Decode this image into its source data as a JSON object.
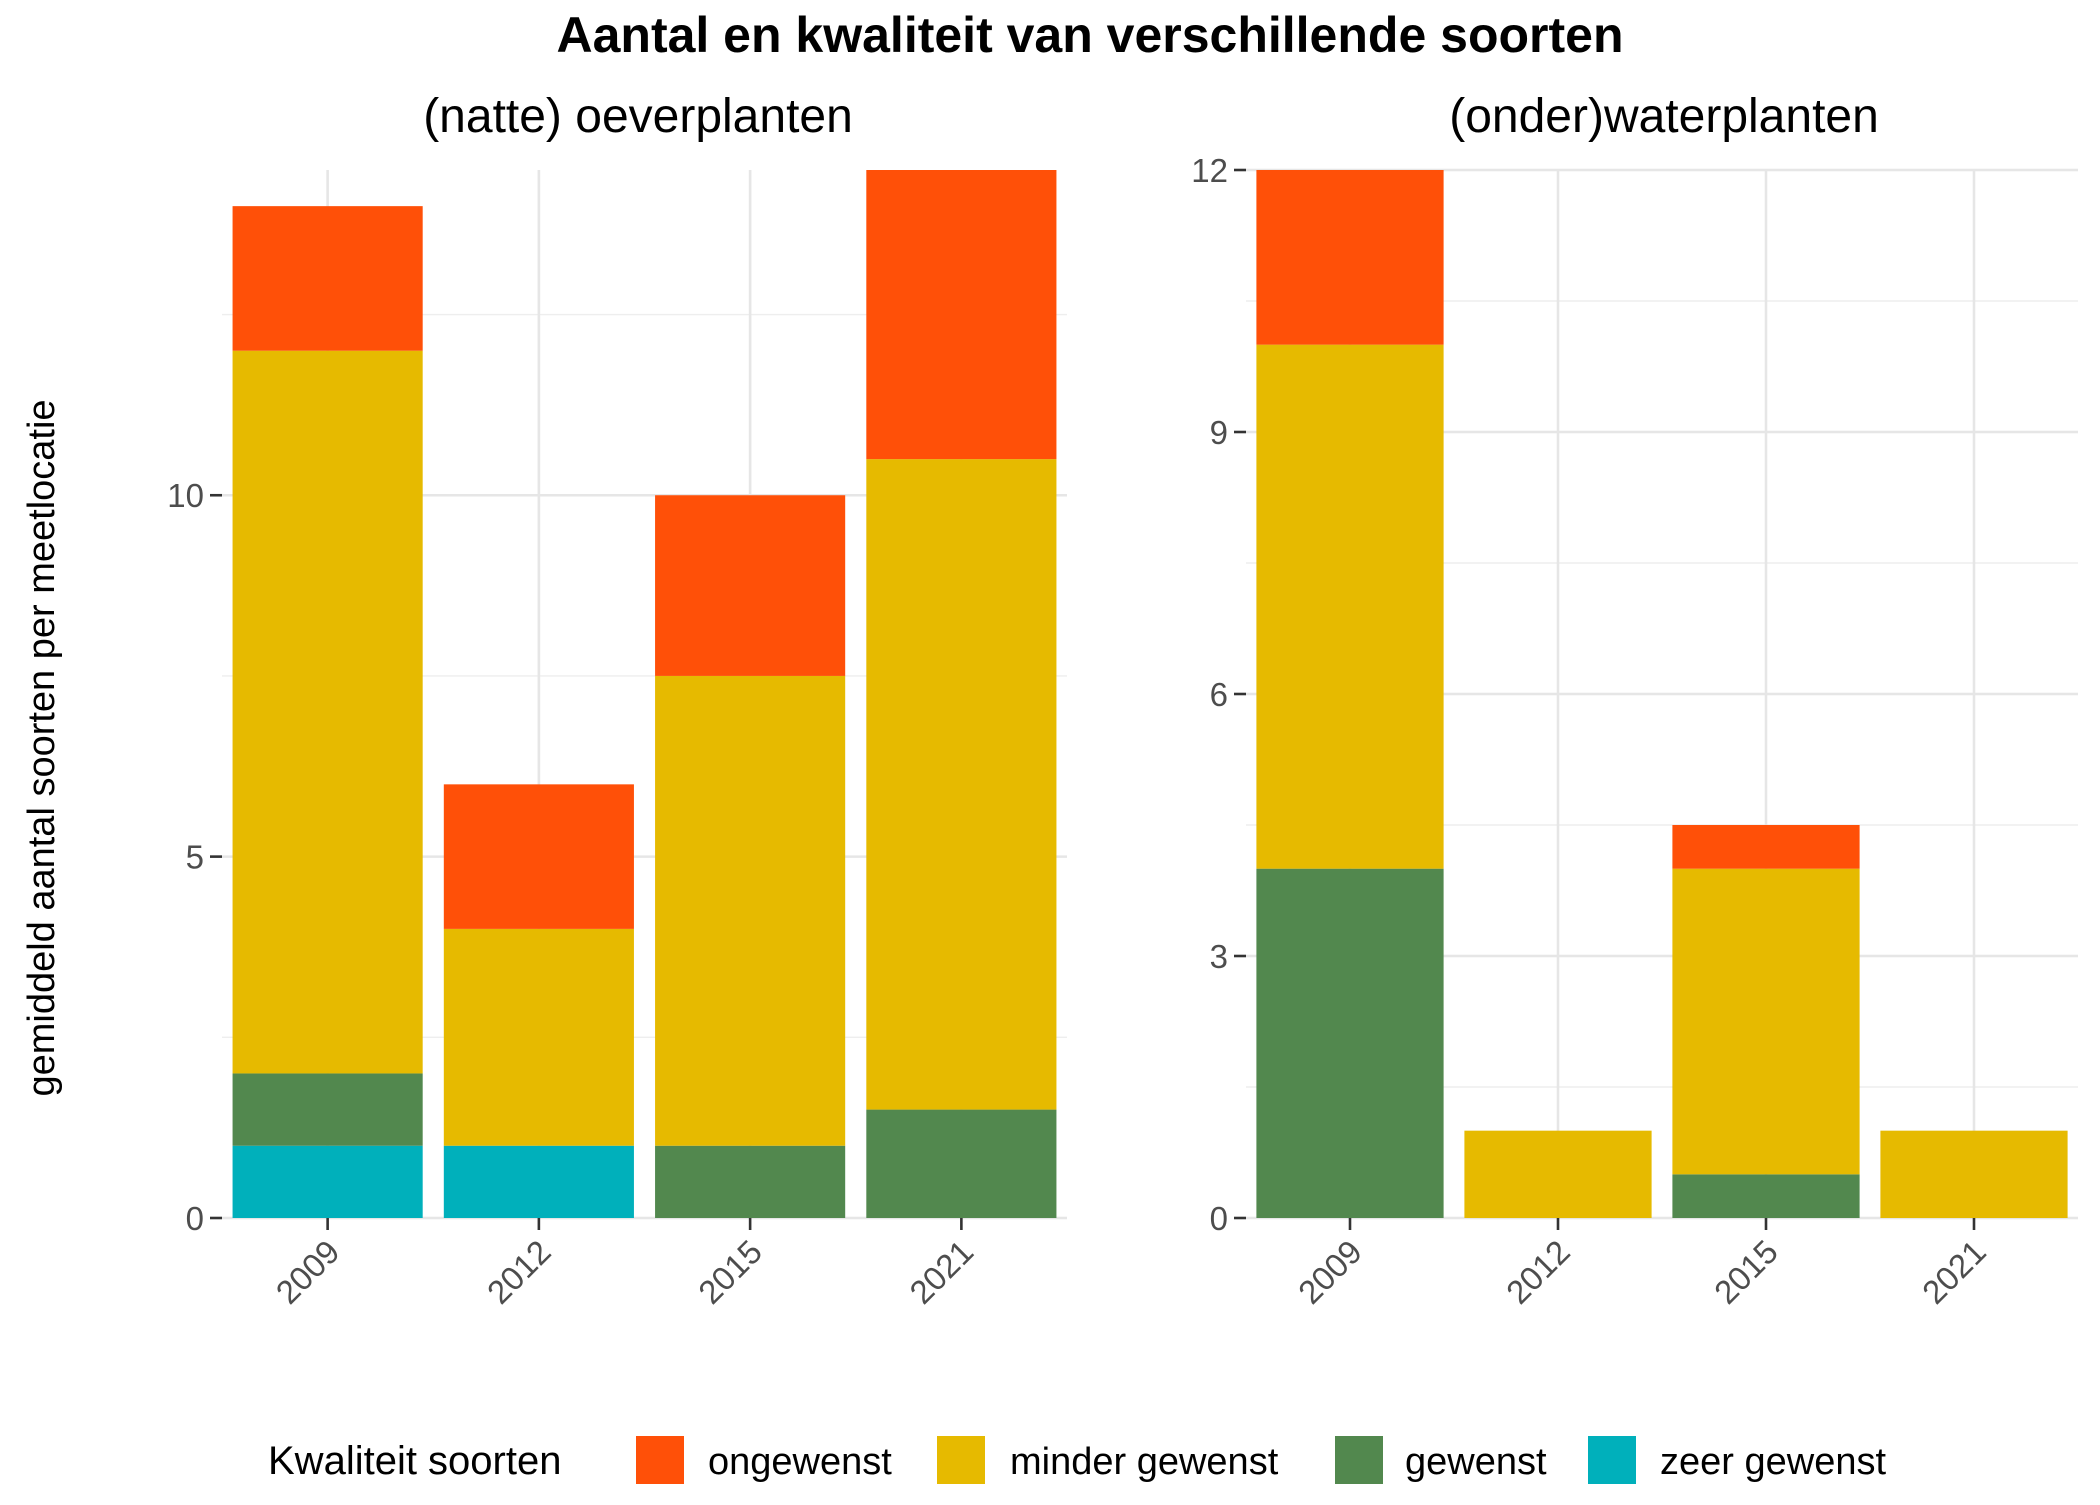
{
  "title": "Aantal en kwaliteit van verschillende soorten",
  "ylabel": "gemiddeld aantal soorten per meetlocatie",
  "legend": {
    "title": "Kwaliteit soorten",
    "position": "bottom",
    "items": [
      {
        "key": "ongewenst",
        "label": "ongewenst",
        "color": "#FF5008"
      },
      {
        "key": "minder_gewenst",
        "label": "minder gewenst",
        "color": "#E6BA00"
      },
      {
        "key": "gewenst",
        "label": "gewenst",
        "color": "#52884E"
      },
      {
        "key": "zeer_gewenst",
        "label": "zeer gewenst",
        "color": "#00B0BB"
      }
    ]
  },
  "chart_data": [
    {
      "type": "bar",
      "stacked": true,
      "title": "(natte) oeverplanten",
      "categories": [
        "2009",
        "2012",
        "2015",
        "2021"
      ],
      "ylim": [
        0,
        14.5
      ],
      "yticks": [
        0,
        5,
        10
      ],
      "ytick_labels": [
        "0",
        "5",
        "10"
      ],
      "grid": true,
      "series": [
        {
          "name": "zeer gewenst",
          "key": "zeer_gewenst",
          "values": [
            1,
            1,
            0,
            0
          ]
        },
        {
          "name": "gewenst",
          "key": "gewenst",
          "values": [
            1,
            0,
            1,
            1.5
          ]
        },
        {
          "name": "minder gewenst",
          "key": "minder_gewenst",
          "values": [
            10,
            3,
            6.5,
            9
          ]
        },
        {
          "name": "ongewenst",
          "key": "ongewenst",
          "values": [
            2,
            2,
            2.5,
            4
          ]
        }
      ]
    },
    {
      "type": "bar",
      "stacked": true,
      "title": "(onder)waterplanten",
      "categories": [
        "2009",
        "2012",
        "2015",
        "2021"
      ],
      "ylim": [
        0,
        12
      ],
      "yticks": [
        0,
        3,
        6,
        9,
        12
      ],
      "ytick_labels": [
        "0",
        "3",
        "6",
        "9",
        "12"
      ],
      "grid": true,
      "series": [
        {
          "name": "zeer gewenst",
          "key": "zeer_gewenst",
          "values": [
            0,
            0,
            0,
            0
          ]
        },
        {
          "name": "gewenst",
          "key": "gewenst",
          "values": [
            4,
            0,
            0.5,
            0
          ]
        },
        {
          "name": "minder gewenst",
          "key": "minder_gewenst",
          "values": [
            6,
            1,
            3.5,
            1
          ]
        },
        {
          "name": "ongewenst",
          "key": "ongewenst",
          "values": [
            2,
            0,
            0.5,
            0
          ]
        }
      ]
    }
  ]
}
